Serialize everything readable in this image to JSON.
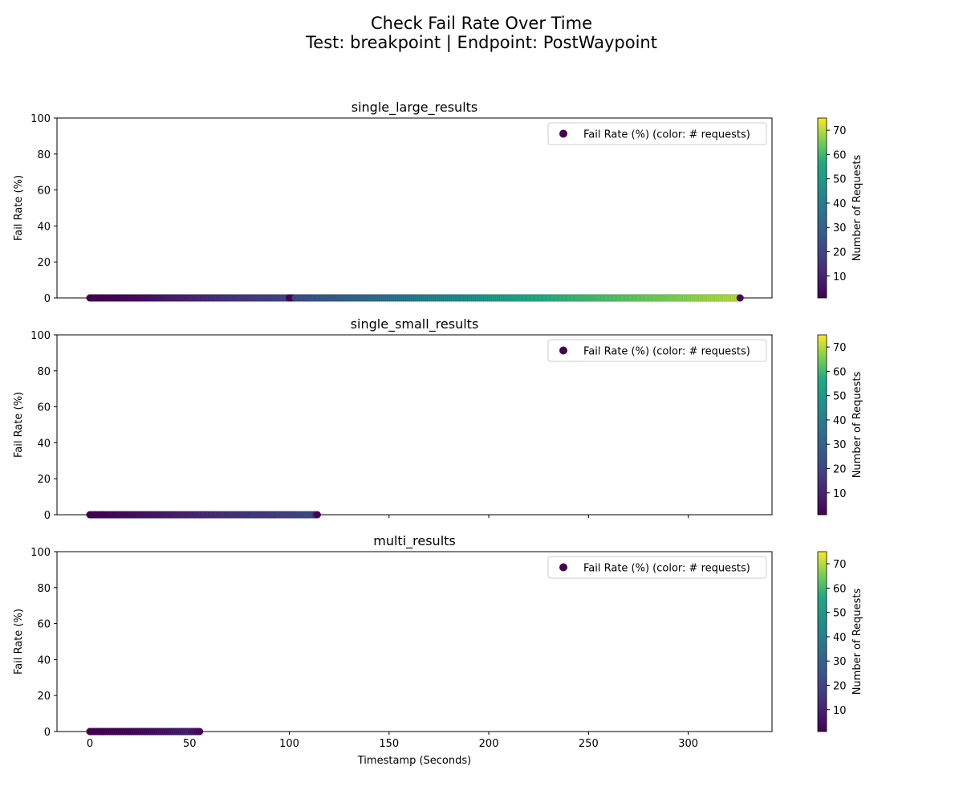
{
  "figure": {
    "title_line1": "Check Fail Rate Over Time",
    "title_line2": "Test: breakpoint | Endpoint: PostWaypoint"
  },
  "chart_data": [
    {
      "type": "scatter",
      "title": "single_large_results",
      "xlabel": "",
      "ylabel": "Fail Rate (%)",
      "xlim": [
        -16.5,
        342
      ],
      "ylim": [
        0,
        100
      ],
      "xticks": [
        0,
        50,
        100,
        150,
        200,
        250,
        300
      ],
      "yticks": [
        0,
        20,
        40,
        60,
        80,
        100
      ],
      "legend": {
        "label": "Fail Rate (%) (color: # requests)",
        "position": "top-right"
      },
      "colorbar": {
        "label": "Number of Requests",
        "min": 1,
        "max": 75,
        "ticks": [
          10,
          20,
          30,
          40,
          50,
          60,
          70
        ],
        "colormap": "viridis"
      },
      "series": [
        {
          "x_start": 0,
          "x_end": 326,
          "x_step": 1,
          "y_all": 0,
          "requests_profile": [
            [
              0,
              1
            ],
            [
              20,
              3
            ],
            [
              40,
              8
            ],
            [
              60,
              12
            ],
            [
              80,
              17
            ],
            [
              99,
              20
            ],
            [
              100,
              1
            ],
            [
              102,
              2
            ],
            [
              103,
              22
            ],
            [
              130,
              30
            ],
            [
              160,
              38
            ],
            [
              190,
              46
            ],
            [
              220,
              56
            ],
            [
              250,
              60
            ],
            [
              280,
              64
            ],
            [
              310,
              68
            ],
            [
              325,
              70
            ],
            [
              326,
              3
            ]
          ]
        }
      ]
    },
    {
      "type": "scatter",
      "title": "single_small_results",
      "xlabel": "",
      "ylabel": "Fail Rate (%)",
      "xlim": [
        -16.5,
        342
      ],
      "ylim": [
        0,
        100
      ],
      "xticks": [
        0,
        50,
        100,
        150,
        200,
        250,
        300
      ],
      "yticks": [
        0,
        20,
        40,
        60,
        80,
        100
      ],
      "legend": {
        "label": "Fail Rate (%) (color: # requests)",
        "position": "top-right"
      },
      "colorbar": {
        "label": "Number of Requests",
        "min": 1,
        "max": 75,
        "ticks": [
          10,
          20,
          30,
          40,
          50,
          60,
          70
        ],
        "colormap": "viridis"
      },
      "series": [
        {
          "x_start": 0,
          "x_end": 114,
          "x_step": 1,
          "y_all": 0,
          "requests_profile": [
            [
              0,
              1
            ],
            [
              20,
              4
            ],
            [
              40,
              8
            ],
            [
              60,
              12
            ],
            [
              80,
              15
            ],
            [
              100,
              19
            ],
            [
              112,
              22
            ],
            [
              114,
              2
            ]
          ]
        }
      ]
    },
    {
      "type": "scatter",
      "title": "multi_results",
      "xlabel": "Timestamp (Seconds)",
      "ylabel": "Fail Rate (%)",
      "xlim": [
        -16.5,
        342
      ],
      "ylim": [
        0,
        100
      ],
      "xticks": [
        0,
        50,
        100,
        150,
        200,
        250,
        300
      ],
      "yticks": [
        0,
        20,
        40,
        60,
        80,
        100
      ],
      "legend": {
        "label": "Fail Rate (%) (color: # requests)",
        "position": "top-right"
      },
      "colorbar": {
        "label": "Number of Requests",
        "min": 1,
        "max": 75,
        "ticks": [
          10,
          20,
          30,
          40,
          50,
          60,
          70
        ],
        "colormap": "viridis"
      },
      "series": [
        {
          "x_start": 0,
          "x_end": 55,
          "x_step": 1,
          "y_all": 0,
          "requests_profile": [
            [
              0,
              1
            ],
            [
              20,
              2
            ],
            [
              40,
              6
            ],
            [
              50,
              9
            ],
            [
              55,
              3
            ]
          ]
        }
      ]
    }
  ]
}
